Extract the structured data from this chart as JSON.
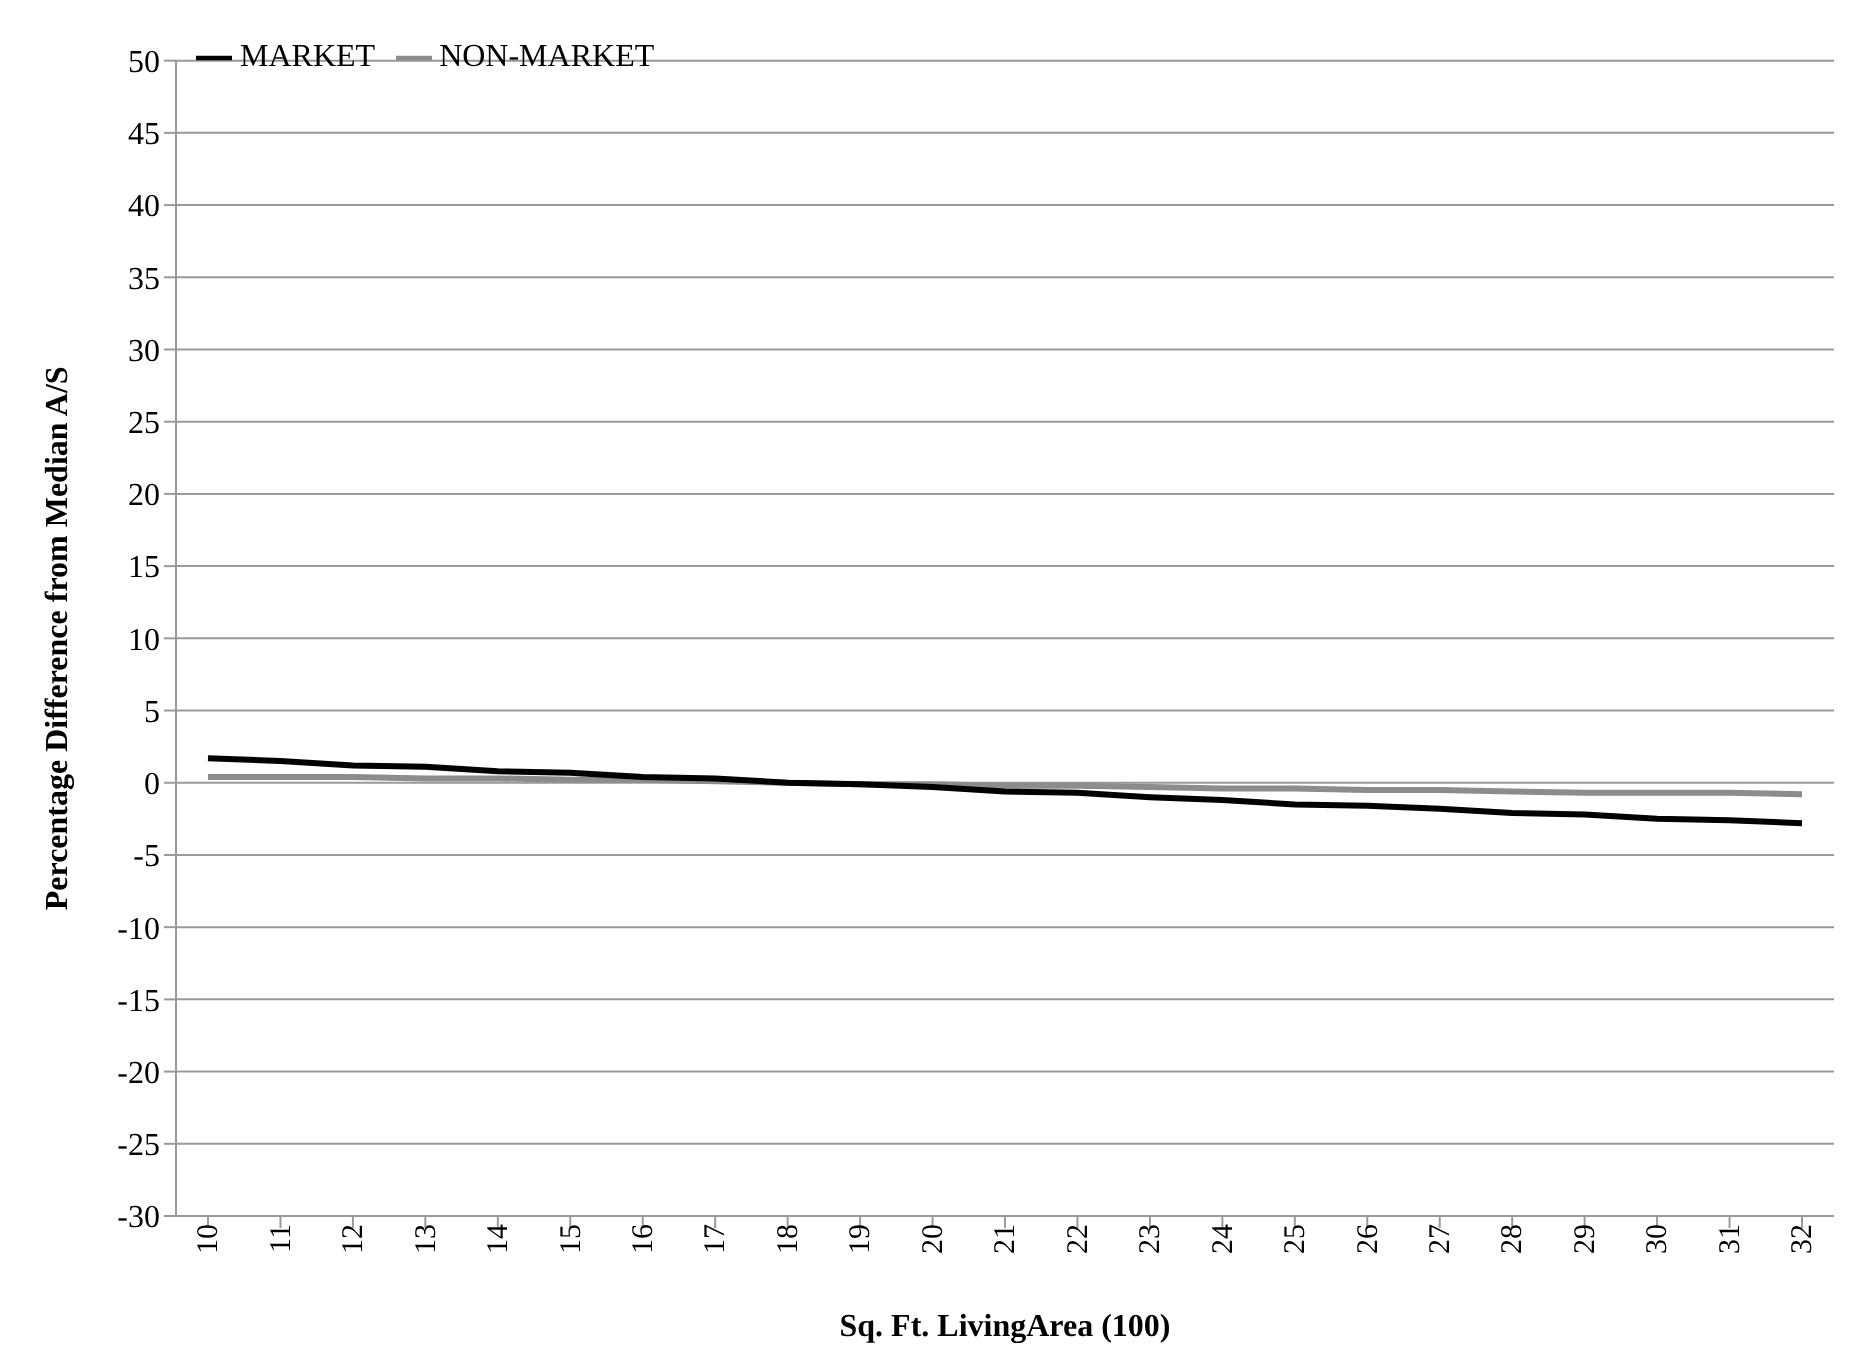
{
  "chart_data": {
    "type": "line",
    "xlabel": "Sq. Ft. LivingArea (100)",
    "ylabel": "Percentage Difference from Median A/S",
    "categories": [
      "10",
      "11",
      "12",
      "13",
      "14",
      "15",
      "16",
      "17",
      "18",
      "19",
      "20",
      "21",
      "22",
      "23",
      "24",
      "25",
      "26",
      "27",
      "28",
      "29",
      "30",
      "31",
      "32"
    ],
    "series": [
      {
        "name": "NON-MARKET",
        "color": "#8c8c8c",
        "values": [
          0.4,
          0.4,
          0.4,
          0.3,
          0.3,
          0.2,
          0.2,
          0.1,
          0,
          -0.1,
          -0.1,
          -0.2,
          -0.2,
          -0.3,
          -0.4,
          -0.4,
          -0.5,
          -0.5,
          -0.6,
          -0.7,
          -0.7,
          -0.7,
          -0.8
        ]
      },
      {
        "name": "MARKET",
        "color": "#000000",
        "values": [
          1.7,
          1.5,
          1.2,
          1.1,
          0.8,
          0.7,
          0.4,
          0.3,
          0,
          -0.1,
          -0.3,
          -0.6,
          -0.7,
          -1.0,
          -1.2,
          -1.5,
          -1.6,
          -1.8,
          -2.1,
          -2.2,
          -2.5,
          -2.6,
          -2.8
        ]
      }
    ],
    "ylim": [
      -30,
      50
    ],
    "yticks": [
      -30,
      -25,
      -20,
      -15,
      -10,
      -5,
      0,
      5,
      10,
      15,
      20,
      25,
      30,
      35,
      40,
      45,
      50
    ],
    "grid": "y",
    "legend": "top left",
    "marker": "none",
    "line_style": "solid"
  }
}
